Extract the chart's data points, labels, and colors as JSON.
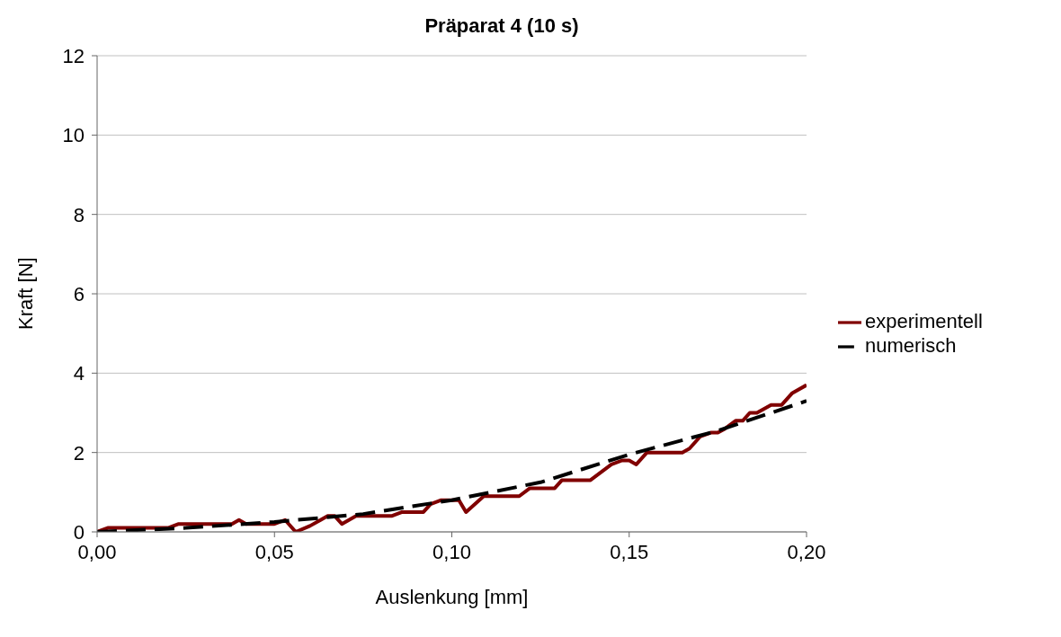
{
  "chart_data": {
    "type": "line",
    "title": "Präparat 4 (10 s)",
    "xlabel": "Auslenkung [mm]",
    "ylabel": "Kraft [N]",
    "xlim": [
      0,
      0.2
    ],
    "xticks": [
      {
        "value": 0,
        "label": "0,00"
      },
      {
        "value": 0.05,
        "label": "0,05"
      },
      {
        "value": 0.1,
        "label": "0,10"
      },
      {
        "value": 0.15,
        "label": "0,15"
      },
      {
        "value": 0.2,
        "label": "0,20"
      }
    ],
    "ylim": [
      0,
      12
    ],
    "yticks": [
      0,
      2,
      4,
      6,
      8,
      10,
      12
    ],
    "grid": "y",
    "legend": "right",
    "marker": "none",
    "series": [
      {
        "name": "experimentell",
        "color": "#800000",
        "line_style": "solid",
        "x": [
          0,
          0.003,
          0.02,
          0.023,
          0.038,
          0.04,
          0.042,
          0.05,
          0.053,
          0.056,
          0.06,
          0.063,
          0.065,
          0.067,
          0.069,
          0.073,
          0.083,
          0.086,
          0.092,
          0.094,
          0.097,
          0.102,
          0.104,
          0.109,
          0.119,
          0.122,
          0.129,
          0.131,
          0.139,
          0.145,
          0.148,
          0.15,
          0.152,
          0.155,
          0.165,
          0.167,
          0.17,
          0.173,
          0.175,
          0.177,
          0.18,
          0.182,
          0.184,
          0.186,
          0.19,
          0.193,
          0.196,
          0.2
        ],
        "values": [
          0,
          0.1,
          0.1,
          0.2,
          0.2,
          0.3,
          0.2,
          0.2,
          0.3,
          0,
          0.15,
          0.3,
          0.4,
          0.4,
          0.2,
          0.4,
          0.4,
          0.5,
          0.5,
          0.7,
          0.8,
          0.8,
          0.5,
          0.9,
          0.9,
          1.1,
          1.1,
          1.3,
          1.3,
          1.7,
          1.8,
          1.8,
          1.7,
          2,
          2,
          2.1,
          2.4,
          2.5,
          2.5,
          2.6,
          2.8,
          2.8,
          3,
          3,
          3.2,
          3.2,
          3.5,
          3.7
        ]
      },
      {
        "name": "numerisch",
        "color": "#000000",
        "line_style": "dashed",
        "x": [
          0,
          0.025,
          0.05,
          0.075,
          0.1,
          0.125,
          0.15,
          0.175,
          0.2
        ],
        "values": [
          0,
          0.1,
          0.25,
          0.45,
          0.8,
          1.25,
          1.95,
          2.55,
          3.3
        ]
      }
    ]
  }
}
